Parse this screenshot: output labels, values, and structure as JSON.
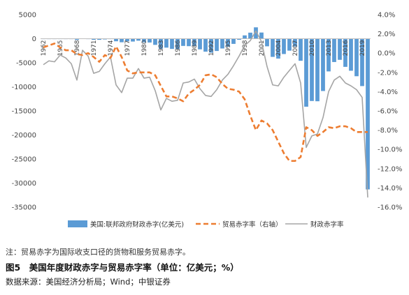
{
  "chart_data": {
    "type": "bar+line",
    "x": [
      1962,
      1963,
      1964,
      1965,
      1966,
      1967,
      1968,
      1969,
      1970,
      1971,
      1972,
      1973,
      1974,
      1975,
      1976,
      1977,
      1978,
      1979,
      1980,
      1981,
      1982,
      1983,
      1984,
      1985,
      1986,
      1987,
      1988,
      1989,
      1990,
      1991,
      1992,
      1993,
      1994,
      1995,
      1996,
      1997,
      1998,
      1999,
      2000,
      2001,
      2002,
      2003,
      2004,
      2005,
      2006,
      2007,
      2008,
      2009,
      2010,
      2011,
      2012,
      2013,
      2014,
      2015,
      2016,
      2017,
      2018,
      2019,
      2020
    ],
    "x_tick_labels": [
      "1962",
      "1965",
      "1968",
      "1971",
      "1974",
      "1977",
      "1980",
      "1983",
      "1986",
      "1989",
      "1992",
      "1995",
      "1998",
      "2001",
      "2004",
      "2007",
      "2010",
      "2013",
      "2016",
      "2019"
    ],
    "y_left": {
      "ticks": [
        "5000",
        "0",
        "-5000",
        "-10000",
        "-15000",
        "-20000",
        "-25000",
        "-30000",
        "-35000"
      ],
      "lim": [
        -35000,
        5000
      ]
    },
    "y_right": {
      "ticks": [
        "4.0%",
        "2.0%",
        "0.0%",
        "-2.0%",
        "-4.0%",
        "-6.0%",
        "-8.0%",
        "-10.0%",
        "-12.0%",
        "-14.0%",
        "-16.0%"
      ],
      "lim": [
        -16,
        4
      ]
    },
    "series": [
      {
        "name": "美国:联邦政府财政赤字(亿美元)",
        "type": "bar",
        "axis": "left",
        "color": "#5b9bd5",
        "values": [
          -71,
          -48,
          -59,
          -14,
          -37,
          -86,
          -252,
          32,
          -28,
          -230,
          -234,
          -149,
          -61,
          -532,
          -737,
          -537,
          -590,
          -407,
          -738,
          -790,
          -1280,
          -2078,
          -1854,
          -2123,
          -2212,
          -1497,
          -1552,
          -1525,
          -2212,
          -2692,
          -2904,
          -2551,
          -2032,
          -1640,
          -1074,
          -219,
          692,
          1256,
          2362,
          1282,
          -1578,
          -3776,
          -4128,
          -3183,
          -2482,
          -1607,
          -4586,
          -14127,
          -12943,
          -12999,
          -10870,
          -6796,
          -4847,
          -4387,
          -5850,
          -6657,
          -7795,
          -9844,
          -31318
        ]
      },
      {
        "name": "贸易赤字率（右轴）",
        "type": "line",
        "axis": "right",
        "style": "dashed",
        "color": "#ed7d31",
        "values": [
          0.6,
          0.8,
          1.0,
          0.6,
          0.3,
          0.3,
          -0.1,
          -0.2,
          0.0,
          -0.4,
          -0.9,
          -0.2,
          -0.5,
          0.7,
          -0.4,
          -1.8,
          -2.1,
          -2.0,
          -2.0,
          -2.0,
          -2.3,
          -3.4,
          -4.5,
          -4.5,
          -4.7,
          -5.0,
          -4.2,
          -3.8,
          -3.3,
          -2.3,
          -2.2,
          -2.5,
          -3.2,
          -3.7,
          -3.8,
          -4.0,
          -4.8,
          -6.5,
          -8.0,
          -7.0,
          -7.3,
          -8.0,
          -9.2,
          -10.4,
          -11.2,
          -11.2,
          -10.8,
          -7.7,
          -8.0,
          -8.6,
          -8.2,
          -7.7,
          -7.8,
          -7.6,
          -7.6,
          -7.8,
          -8.2,
          -8.2,
          -8.2
        ]
      },
      {
        "name": "财政赤字率",
        "type": "line",
        "axis": "right",
        "color": "#a5a5a5",
        "values": [
          -1.2,
          -0.8,
          -0.9,
          -0.2,
          -0.5,
          -1.1,
          -2.8,
          0.3,
          -0.3,
          -2.1,
          -1.9,
          -1.1,
          -0.4,
          -3.3,
          -4.1,
          -2.6,
          -2.6,
          -1.6,
          -2.6,
          -2.5,
          -3.9,
          -5.9,
          -4.7,
          -5.0,
          -4.9,
          -3.1,
          -3.0,
          -2.7,
          -3.7,
          -4.4,
          -4.5,
          -3.8,
          -2.8,
          -2.2,
          -1.3,
          -0.3,
          0.8,
          1.3,
          2.3,
          1.2,
          -1.4,
          -3.3,
          -3.4,
          -2.5,
          -1.8,
          -1.1,
          -3.1,
          -9.8,
          -8.6,
          -8.4,
          -6.7,
          -4.0,
          -2.8,
          -2.4,
          -3.1,
          -3.4,
          -3.8,
          -4.6,
          -15.0
        ]
      }
    ],
    "legend_position": "bottom",
    "grid": false
  },
  "legend": {
    "bar": "美国:联邦政府财政赤字(亿美元)",
    "trade": "贸易赤字率（右轴）",
    "fiscal": "财政赤字率"
  },
  "note": "注：贸易赤字为国际收支口径的货物和服务贸易赤字。",
  "figure_title": "图5　美国年度财政赤字与贸易赤字率（单位：亿美元；%）",
  "source": "数据来源：美国经济分析局；Wind；中银证券"
}
